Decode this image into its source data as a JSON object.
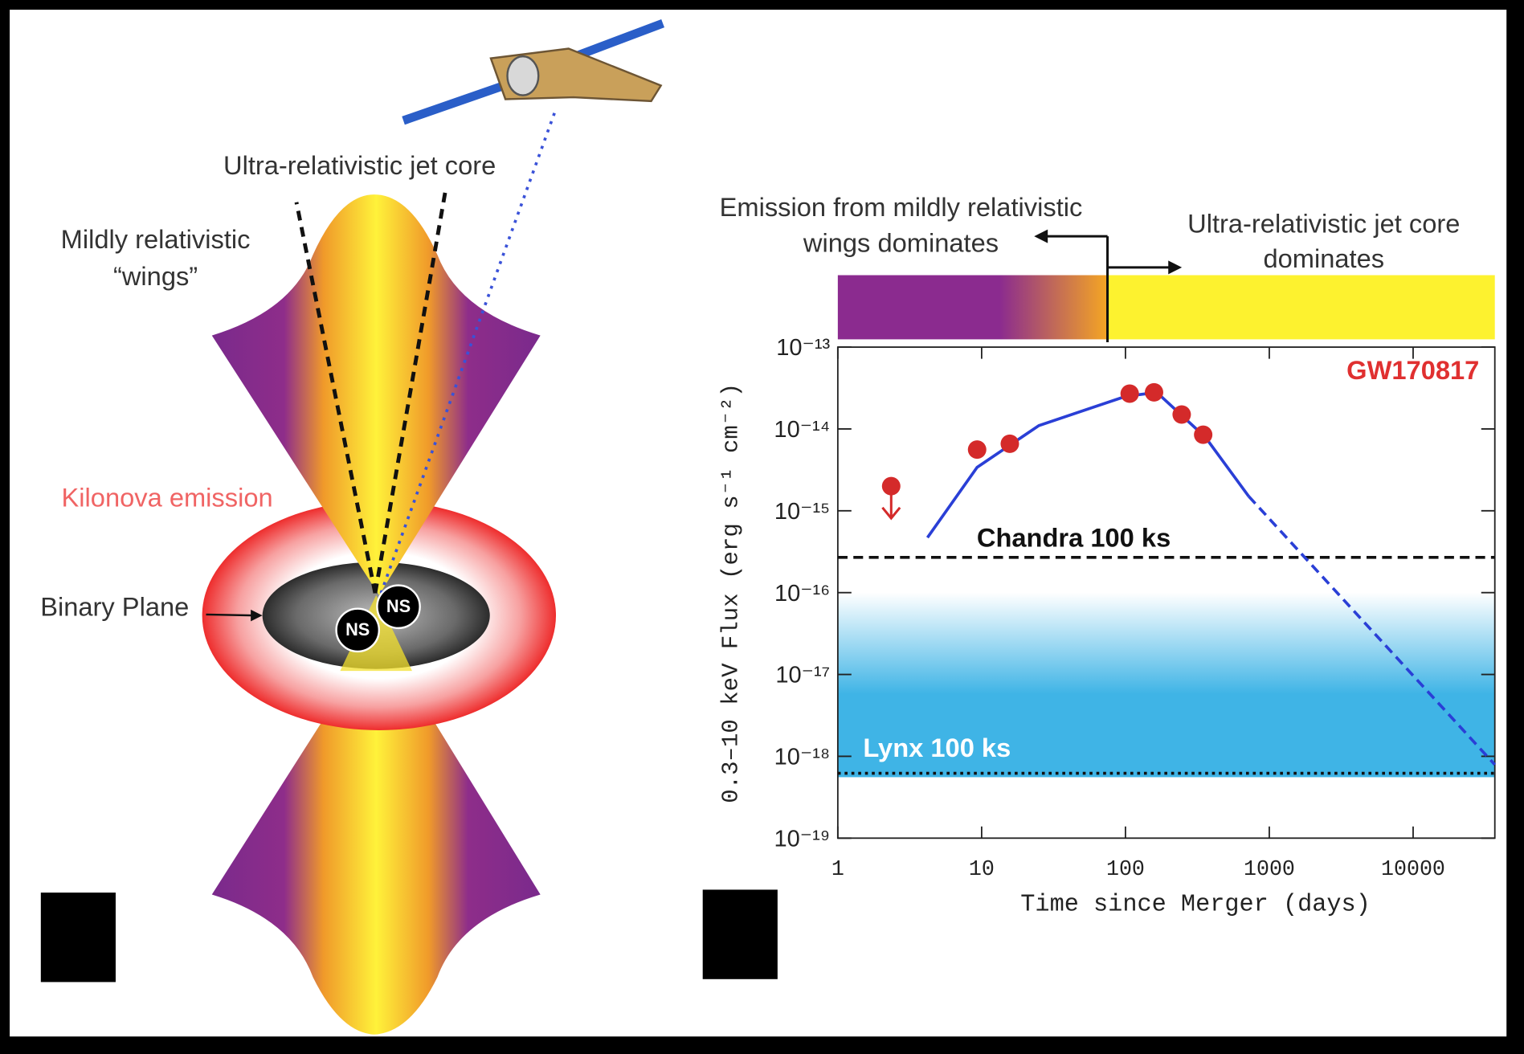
{
  "diagram": {
    "labels": {
      "jet_core": "Ultra-relativistic jet core",
      "wings": [
        "Mildly relativistic",
        "“wings”"
      ],
      "kilonova": "Kilonova emission",
      "binary_plane": "Binary Plane"
    },
    "nodes": [
      {
        "label": "NS"
      },
      {
        "label": "NS"
      }
    ]
  },
  "chart_data": {
    "type": "line",
    "annotation": {
      "text": "GW170817",
      "color": "#e03030"
    },
    "xlabel": "Time since Merger (days)",
    "ylabel": "0.3–10 keV Flux (erg s⁻¹ cm⁻²)",
    "xscale": "log",
    "yscale": "log",
    "xlim": [
      1,
      37000
    ],
    "ylim": [
      1e-19,
      1e-13
    ],
    "xticks": [
      1,
      10,
      100,
      1000,
      10000
    ],
    "yticks": [
      {
        "value": 1e-13,
        "label": "10⁻¹³"
      },
      {
        "value": 1e-14,
        "label": "10⁻¹⁴"
      },
      {
        "value": 1e-15,
        "label": "10⁻¹⁵"
      },
      {
        "value": 1e-16,
        "label": "10⁻¹⁶"
      },
      {
        "value": 1e-17,
        "label": "10⁻¹⁷"
      },
      {
        "value": 1e-18,
        "label": "10⁻¹⁸"
      },
      {
        "value": 1e-19,
        "label": "10⁻¹⁹"
      }
    ],
    "series": [
      {
        "kind": "line",
        "style": "solid",
        "color": "#2a3fd6",
        "x": [
          4.2,
          9.3,
          25,
          100,
          165,
          360,
          720
        ],
        "values": [
          4.7e-16,
          3.4e-15,
          1.1e-14,
          2.5e-14,
          2.8e-14,
          7.9e-15,
          1.5e-15
        ]
      },
      {
        "kind": "line",
        "style": "dashed",
        "color": "#2a3fd6",
        "x": [
          720,
          37000
        ],
        "values": [
          1.5e-15,
          7.9e-19
        ]
      },
      {
        "kind": "scatter",
        "color": "#d42a2a",
        "x": [
          9.3,
          15.7,
          107,
          158,
          246,
          347
        ],
        "values": [
          5.6e-15,
          6.6e-15,
          2.7e-14,
          2.8e-14,
          1.5e-14,
          8.5e-15
        ]
      },
      {
        "kind": "upper_limit",
        "color": "#d42a2a",
        "x": [
          2.35
        ],
        "values": [
          2e-15
        ]
      }
    ],
    "hlines": [
      {
        "label": "Chandra 100 ks",
        "value": 2.7e-16,
        "style": "dashed",
        "color": "#111111",
        "label_color": "#111111"
      },
      {
        "label": "Lynx 100 ks",
        "value": 6.2e-19,
        "style": "dotted",
        "color": "#111111",
        "label_color": "#ffffff"
      }
    ],
    "band": {
      "ylim": [
        6.2e-19,
        1e-16
      ],
      "colors": [
        "#ffffff",
        "#3fb4e6"
      ]
    },
    "regions": [
      {
        "label": [
          "Emission from mildly relativistic",
          "wings dominates"
        ],
        "xlim": [
          1,
          75
        ],
        "colors": [
          "#8b2b8f",
          "#f5a623"
        ]
      },
      {
        "label": [
          "Ultra-relativistic jet core",
          "dominates"
        ],
        "xlim": [
          75,
          37000
        ],
        "colors": [
          "#fdf22f"
        ]
      }
    ]
  }
}
